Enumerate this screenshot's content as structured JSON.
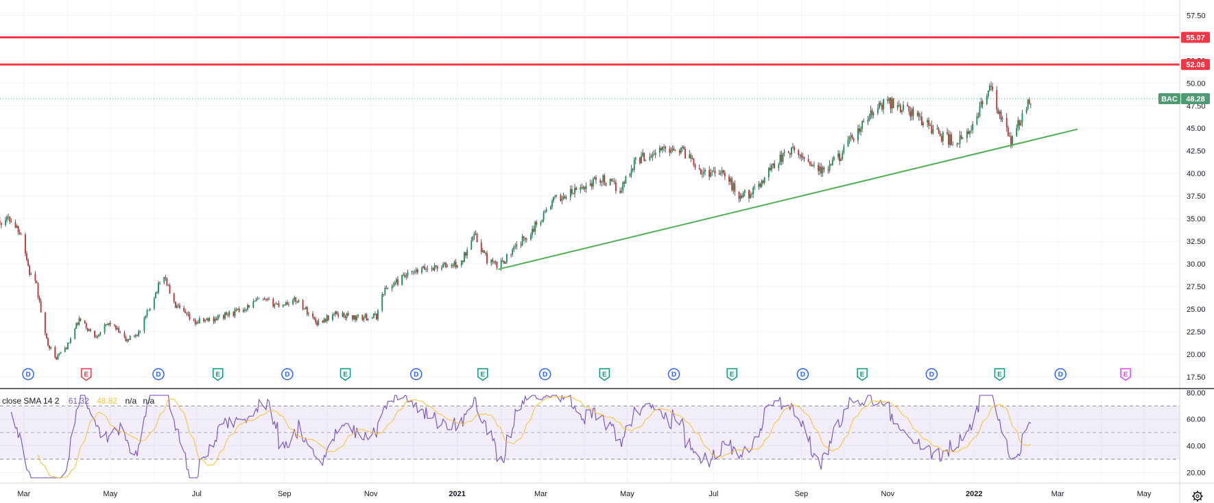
{
  "chart_data": [
    {
      "type": "candlestick",
      "symbol": "BAC",
      "last_price": 48.28,
      "y_ticks": [
        "57.50",
        "55.00",
        "52.50",
        "50.00",
        "47.50",
        "45.00",
        "42.50",
        "40.00",
        "37.50",
        "35.00",
        "32.50",
        "30.00",
        "27.50",
        "25.00",
        "22.50",
        "20.00",
        "17.50"
      ],
      "ylim": [
        16.2,
        59.2
      ],
      "x_axis_labels": [
        "Mar",
        "May",
        "Jul",
        "Sep",
        "Nov",
        "2021",
        "Mar",
        "May",
        "Jul",
        "Sep",
        "Nov",
        "2022",
        "Mar",
        "May"
      ],
      "x_axis_bold": [
        "2021",
        "2022"
      ],
      "date_range": [
        "2020-02",
        "2022-05"
      ],
      "close_path": [
        [
          "2020-02-01",
          32.8
        ],
        [
          "2020-02-12",
          34.6
        ],
        [
          "2020-02-20",
          35.0
        ],
        [
          "2020-02-28",
          33.5
        ],
        [
          "2020-03-05",
          29.0
        ],
        [
          "2020-03-10",
          27.5
        ],
        [
          "2020-03-16",
          22.0
        ],
        [
          "2020-03-23",
          19.5
        ],
        [
          "2020-04-01",
          21.0
        ],
        [
          "2020-04-09",
          23.8
        ],
        [
          "2020-04-20",
          22.0
        ],
        [
          "2020-05-01",
          23.5
        ],
        [
          "2020-05-12",
          21.5
        ],
        [
          "2020-05-22",
          22.5
        ],
        [
          "2020-06-01",
          26.5
        ],
        [
          "2020-06-08",
          28.8
        ],
        [
          "2020-06-15",
          25.5
        ],
        [
          "2020-06-29",
          23.5
        ],
        [
          "2020-07-15",
          24.0
        ],
        [
          "2020-07-31",
          24.8
        ],
        [
          "2020-08-14",
          26.0
        ],
        [
          "2020-08-28",
          25.5
        ],
        [
          "2020-09-10",
          26.0
        ],
        [
          "2020-09-24",
          23.5
        ],
        [
          "2020-10-08",
          24.5
        ],
        [
          "2020-10-22",
          24.0
        ],
        [
          "2020-11-05",
          24.2
        ],
        [
          "2020-11-10",
          27.0
        ],
        [
          "2020-11-24",
          28.5
        ],
        [
          "2020-12-10",
          29.5
        ],
        [
          "2021-01-04",
          30.0
        ],
        [
          "2021-01-12",
          33.5
        ],
        [
          "2021-01-22",
          30.5
        ],
        [
          "2021-01-29",
          29.7
        ],
        [
          "2021-02-10",
          31.5
        ],
        [
          "2021-02-24",
          34.0
        ],
        [
          "2021-03-10",
          37.0
        ],
        [
          "2021-03-25",
          38.0
        ],
        [
          "2021-04-12",
          39.5
        ],
        [
          "2021-04-26",
          38.2
        ],
        [
          "2021-05-07",
          41.5
        ],
        [
          "2021-05-24",
          42.5
        ],
        [
          "2021-06-04",
          43.0
        ],
        [
          "2021-06-14",
          42.0
        ],
        [
          "2021-06-24",
          40.0
        ],
        [
          "2021-07-06",
          40.5
        ],
        [
          "2021-07-19",
          37.5
        ],
        [
          "2021-07-30",
          38.0
        ],
        [
          "2021-08-12",
          41.0
        ],
        [
          "2021-08-24",
          42.5
        ],
        [
          "2021-09-06",
          41.5
        ],
        [
          "2021-09-17",
          40.0
        ],
        [
          "2021-09-28",
          42.0
        ],
        [
          "2021-10-08",
          44.0
        ],
        [
          "2021-10-20",
          46.5
        ],
        [
          "2021-11-01",
          48.0
        ],
        [
          "2021-11-15",
          47.0
        ],
        [
          "2021-11-29",
          45.5
        ],
        [
          "2021-12-10",
          44.0
        ],
        [
          "2021-12-20",
          43.5
        ],
        [
          "2021-12-30",
          44.5
        ],
        [
          "2022-01-05",
          47.5
        ],
        [
          "2022-01-12",
          49.4
        ],
        [
          "2022-01-20",
          46.0
        ],
        [
          "2022-01-27",
          43.5
        ],
        [
          "2022-02-03",
          46.0
        ],
        [
          "2022-02-10",
          48.28
        ]
      ],
      "horizontal_lines": [
        {
          "value": 55.07,
          "label": "55.07",
          "color": "#f23645"
        },
        {
          "value": 52.06,
          "label": "52.06",
          "color": "#f23645"
        }
      ],
      "trend_line": {
        "from": [
          "2021-01-30",
          29.4
        ],
        "to": [
          "2022-03-15",
          44.9
        ],
        "color": "#4caf50"
      },
      "events": [
        {
          "date": "2020-03-04",
          "type": "D"
        },
        {
          "date": "2020-04-14",
          "type": "E",
          "color": "red"
        },
        {
          "date": "2020-06-04",
          "type": "D"
        },
        {
          "date": "2020-07-16",
          "type": "E"
        },
        {
          "date": "2020-09-03",
          "type": "D"
        },
        {
          "date": "2020-10-14",
          "type": "E"
        },
        {
          "date": "2020-12-03",
          "type": "D"
        },
        {
          "date": "2021-01-19",
          "type": "E"
        },
        {
          "date": "2021-03-04",
          "type": "D"
        },
        {
          "date": "2021-04-15",
          "type": "E"
        },
        {
          "date": "2021-06-03",
          "type": "D"
        },
        {
          "date": "2021-07-14",
          "type": "E"
        },
        {
          "date": "2021-09-02",
          "type": "D"
        },
        {
          "date": "2021-10-14",
          "type": "E"
        },
        {
          "date": "2021-12-02",
          "type": "D"
        },
        {
          "date": "2022-01-19",
          "type": "E"
        },
        {
          "date": "2022-03-03",
          "type": "D"
        },
        {
          "date": "2022-04-18",
          "type": "E",
          "color": "magenta"
        }
      ],
      "colors": {
        "up": "#26a69a",
        "down": "#ef5350",
        "candle_up": "#0a8f4c",
        "candle_down": "#c62828",
        "last_badge": "#4f9a72",
        "grid": "#f0f3fa"
      }
    },
    {
      "type": "line",
      "indicator": "RSI",
      "legend": {
        "label": "close SMA 14 2",
        "rsi": "61.32",
        "sma": "48.82",
        "na1": "n/a",
        "na2": "n/a"
      },
      "y_ticks": [
        "80.00",
        "60.00",
        "40.00",
        "20.00"
      ],
      "ylim": [
        12,
        82
      ],
      "bands": {
        "upper": 70,
        "middle": 50,
        "lower": 30
      },
      "series": [
        {
          "name": "RSI",
          "color": "#7e57c2"
        },
        {
          "name": "SMA",
          "color": "#fbc02d"
        }
      ]
    }
  ]
}
